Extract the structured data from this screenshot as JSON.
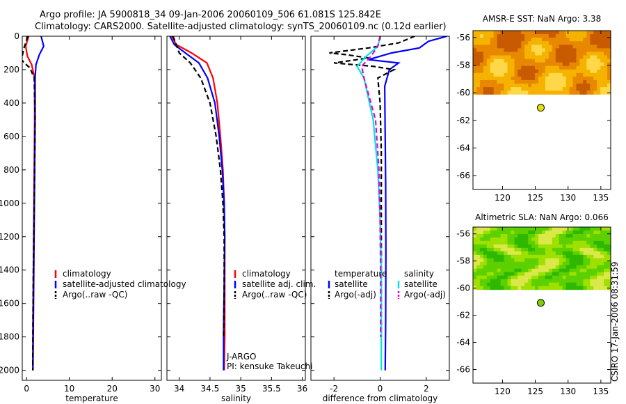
{
  "header": {
    "line1": "Argo profile: JA 5900818_34 09-Jan-2006 20060109_506 61.081S 125.842E",
    "line2": "Climatology: CARS2000. Satellite-adjusted climatology: synTS_20060109.nc (0.12d earlier)"
  },
  "credit": "CSIRO 17-Jan-2006 08:31:59",
  "colors": {
    "climatology": "#ff0000",
    "satellite": "#0000ff",
    "argo": "#000000",
    "salinity_satellite": "#00e5e5",
    "salinity_argo": "#e000e0",
    "float_marker_sst": "#e8e000",
    "float_marker_sla": "#7fd000"
  },
  "chart_data": [
    {
      "type": "line",
      "panel": "temperature",
      "xlabel": "temperature",
      "ylabel": "",
      "xlim": [
        -1,
        31.5
      ],
      "ylim": [
        2060,
        0
      ],
      "xticks": [
        0,
        10,
        20,
        30
      ],
      "yticks": [
        0,
        200,
        400,
        600,
        800,
        1000,
        1200,
        1400,
        1600,
        1800,
        2000
      ],
      "legend": {
        "entries": [
          "climatology",
          "satellite-adjusted climatology",
          "Argo(..raw -QC)"
        ],
        "placement": "lower-right"
      },
      "series": [
        {
          "name": "climatology",
          "style": "solid",
          "color": "#ff0000",
          "x": [
            0.5,
            -0.2,
            0.2,
            1.2,
            1.9,
            1.9,
            1.8,
            1.7,
            1.6,
            1.5,
            1.45
          ],
          "y": [
            0,
            60,
            120,
            170,
            250,
            500,
            800,
            1100,
            1400,
            1700,
            2000
          ]
        },
        {
          "name": "satellite-adjusted climatology",
          "style": "solid",
          "color": "#0000ff",
          "x": [
            3.4,
            4.0,
            3.0,
            2.2,
            2.0,
            2.0,
            1.9,
            1.8,
            1.7,
            1.6,
            1.5
          ],
          "y": [
            0,
            60,
            110,
            170,
            250,
            500,
            800,
            1100,
            1400,
            1700,
            2000
          ]
        },
        {
          "name": "Argo(..raw -QC)",
          "style": "dashed",
          "color": "#000000",
          "x": [
            0.3,
            -0.6,
            -1.2,
            -0.5,
            0.8,
            1.8,
            2.0,
            1.9,
            1.75,
            1.6,
            1.5,
            1.45
          ],
          "y": [
            0,
            70,
            140,
            160,
            190,
            250,
            500,
            800,
            1100,
            1400,
            1700,
            2000
          ]
        }
      ]
    },
    {
      "type": "line",
      "panel": "salinity",
      "xlabel": "salinity",
      "ylabel": "",
      "xlim": [
        33.8,
        36.05
      ],
      "ylim": [
        2060,
        0
      ],
      "xticks": [
        34,
        34.5,
        35,
        35.5,
        36
      ],
      "xtick_labels": [
        "34",
        "34.5",
        "35",
        "35.5",
        "36"
      ],
      "legend": {
        "entries": [
          "climatology",
          "satellite adj. clim.",
          "Argo(..raw -QC)"
        ],
        "placement": "lower-right"
      },
      "annotation": [
        "J-ARGO",
        "PI: kensuke Takeuchi"
      ],
      "series": [
        {
          "name": "climatology",
          "style": "solid",
          "color": "#ff0000",
          "x": [
            33.88,
            33.95,
            34.2,
            34.45,
            34.55,
            34.62,
            34.67,
            34.71,
            34.73,
            34.74,
            34.74,
            34.74,
            34.73
          ],
          "y": [
            0,
            50,
            100,
            160,
            250,
            400,
            600,
            800,
            1000,
            1200,
            1500,
            1800,
            2000
          ]
        },
        {
          "name": "satellite adj. clim.",
          "style": "solid",
          "color": "#0000ff",
          "x": [
            33.85,
            33.92,
            34.1,
            34.32,
            34.46,
            34.58,
            34.65,
            34.7,
            34.73,
            34.74,
            34.73,
            34.72,
            34.72
          ],
          "y": [
            0,
            50,
            100,
            160,
            250,
            400,
            600,
            800,
            1000,
            1200,
            1500,
            1800,
            2000
          ]
        },
        {
          "name": "Argo(..raw -QC)",
          "style": "dashed",
          "color": "#000000",
          "x": [
            33.9,
            34.0,
            34.18,
            34.35,
            34.5,
            34.6,
            34.67,
            34.71,
            34.73,
            34.73,
            34.72
          ],
          "y": [
            0,
            100,
            160,
            250,
            400,
            600,
            800,
            1000,
            1200,
            1500,
            1800
          ]
        }
      ]
    },
    {
      "type": "line",
      "panel": "difference",
      "xlabel": "difference from climatology",
      "ylabel": "",
      "xlim": [
        -3,
        3
      ],
      "ylim": [
        2060,
        0
      ],
      "xticks": [
        -2,
        0,
        2
      ],
      "legend": {
        "groups": [
          {
            "title": "temperature",
            "entries": [
              "satellite",
              "Argo(-adj)"
            ]
          },
          {
            "title": "salinity",
            "entries": [
              "satellite",
              "Argo(-adj)"
            ]
          }
        ],
        "placement": "lower-right"
      },
      "series": [
        {
          "name": "temperature satellite",
          "style": "solid",
          "color": "#0000ff",
          "x": [
            2.9,
            2.1,
            1.7,
            0.5,
            -0.5,
            0.8,
            0.4,
            0.2,
            0.22,
            0.24,
            0.25,
            0.24,
            0.22
          ],
          "y": [
            0,
            30,
            70,
            100,
            140,
            160,
            200,
            300,
            600,
            900,
            1300,
            1700,
            2000
          ]
        },
        {
          "name": "temperature Argo(-adj)",
          "style": "dashed",
          "color": "#000000",
          "x": [
            1.5,
            0.8,
            -0.5,
            -2.2,
            -1.5,
            -0.5,
            -2.0,
            -0.3,
            0.6,
            -0.1,
            0.0,
            0.05,
            0.05,
            0.05,
            0.05
          ],
          "y": [
            0,
            40,
            70,
            100,
            110,
            130,
            160,
            180,
            200,
            250,
            400,
            700,
            1000,
            1400,
            1800
          ]
        },
        {
          "name": "salinity satellite",
          "style": "solid",
          "color": "#00e5e5",
          "x": [
            0.0,
            -0.1,
            -0.6,
            -1.0,
            -0.7,
            -0.3,
            -0.1,
            0.0,
            0.05,
            0.05,
            0.05
          ],
          "y": [
            0,
            60,
            120,
            180,
            250,
            500,
            800,
            1100,
            1400,
            1700,
            2000
          ]
        },
        {
          "name": "salinity Argo(-adj)",
          "style": "dashed",
          "color": "#e000e0",
          "x": [
            0.0,
            -0.1,
            -0.4,
            -0.8,
            -0.7,
            -0.2,
            -0.05,
            0.0,
            0.02,
            0.02
          ],
          "y": [
            0,
            60,
            120,
            180,
            250,
            500,
            800,
            1100,
            1400,
            1800
          ]
        }
      ]
    },
    {
      "type": "heatmap",
      "panel": "sst",
      "title": "AMSR-E SST: NaN Argo: 3.38",
      "xlim": [
        115.5,
        136.5
      ],
      "ylim": [
        -67,
        -55.5
      ],
      "xticks": [
        120,
        125,
        130,
        135
      ],
      "yticks": [
        -56,
        -58,
        -60,
        -62,
        -64,
        -66
      ],
      "data_extent_lat": [
        -55.5,
        -60.1
      ],
      "palette": [
        "#c85a00",
        "#e88800",
        "#f5b300",
        "#ffd84a"
      ],
      "float": {
        "lon": 125.842,
        "lat": -61.081
      }
    },
    {
      "type": "heatmap",
      "panel": "sla",
      "title": "Altimetric SLA: NaN Argo: 0.066",
      "xlim": [
        115.5,
        136.5
      ],
      "ylim": [
        -67,
        -55.5
      ],
      "xticks": [
        120,
        125,
        130,
        135
      ],
      "yticks": [
        -56,
        -58,
        -60,
        -62,
        -64,
        -66
      ],
      "data_extent_lat": [
        -55.5,
        -60.1
      ],
      "palette": [
        "#2fb800",
        "#5cd000",
        "#9ee000",
        "#dbe84a"
      ],
      "float": {
        "lon": 125.842,
        "lat": -61.081
      }
    }
  ]
}
